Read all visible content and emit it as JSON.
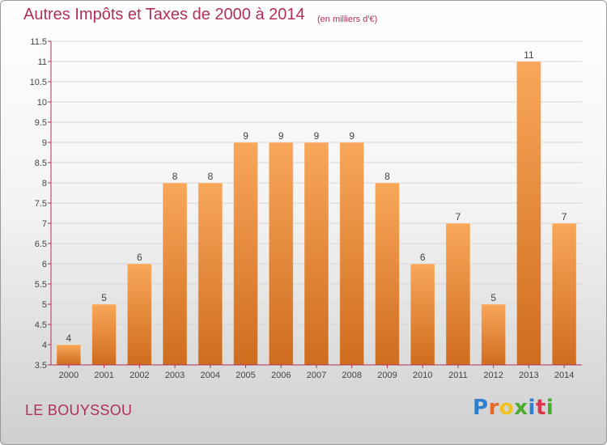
{
  "header": {
    "title": "Autres Impôts et Taxes de 2000 à 2014",
    "subtitle": "(en milliers d'€)"
  },
  "footer": {
    "place": "LE BOUYSSOU",
    "logo": [
      "P",
      "r",
      "o",
      "x",
      "i",
      "t",
      "i"
    ],
    "logo_colors": [
      "#2f7fd0",
      "#e8682a",
      "#f2c21a",
      "#4caa2e",
      "#2f7fd0",
      "#d8364c",
      "#4caa2e"
    ]
  },
  "colors": {
    "bar_top": "#f9a75a",
    "bar_bottom": "#cf6c1e",
    "axis": "#b0305a",
    "grid": "#d6d6d6",
    "text": "#444444"
  },
  "chart_data": {
    "type": "bar",
    "title": "Autres Impôts et Taxes de 2000 à 2014",
    "subtitle": "(en milliers d'€)",
    "categories": [
      "2000",
      "2001",
      "2002",
      "2003",
      "2004",
      "2005",
      "2006",
      "2007",
      "2008",
      "2009",
      "2010",
      "2011",
      "2012",
      "2013",
      "2014"
    ],
    "values": [
      4,
      5,
      6,
      8,
      8,
      9,
      9,
      9,
      9,
      8,
      6,
      7,
      5,
      11,
      7
    ],
    "ylim": [
      3.5,
      11.5
    ],
    "yticks": [
      "3.5",
      "4",
      "4.5",
      "5",
      "5.5",
      "6",
      "6.5",
      "7",
      "7.5",
      "8",
      "8.5",
      "9",
      "9.5",
      "10",
      "10.5",
      "11",
      "11.5"
    ],
    "grid": true,
    "legend": "none"
  }
}
